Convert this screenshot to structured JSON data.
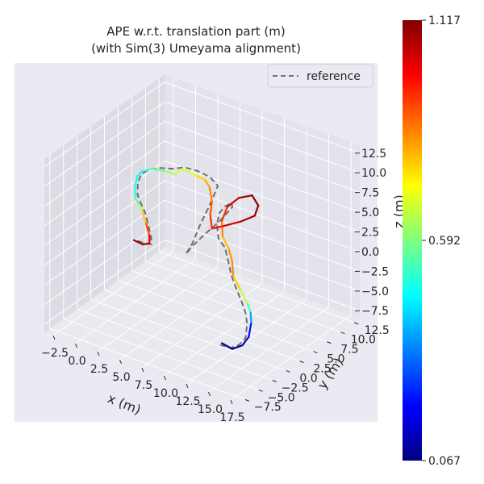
{
  "chart_data": {
    "type": "line",
    "projection": "3d",
    "title_line1": "APE w.r.t. translation part (m)",
    "title_line2": "(with Sim(3) Umeyama alignment)",
    "xlabel": "x (m)",
    "ylabel": "y (m)",
    "zlabel": "z (m)",
    "xlim": [
      -3.5,
      18.5
    ],
    "ylim": [
      -8.5,
      13.5
    ],
    "zlim": [
      -8.5,
      13.5
    ],
    "x_ticks": [
      "−2.5",
      "0.0",
      "2.5",
      "5.0",
      "7.5",
      "10.0",
      "12.5",
      "15.0",
      "17.5"
    ],
    "y_ticks": [
      "−7.5",
      "−5.0",
      "−2.5",
      "0.0",
      "2.5",
      "5.0",
      "7.5",
      "10.0",
      "12.5"
    ],
    "z_ticks": [
      "−7.5",
      "−5.0",
      "−2.5",
      "0.0",
      "2.5",
      "5.0",
      "7.5",
      "10.0",
      "12.5"
    ],
    "x_tick_values": [
      -2.5,
      0,
      2.5,
      5,
      7.5,
      10,
      12.5,
      15,
      17.5
    ],
    "y_tick_values": [
      -7.5,
      -5,
      -2.5,
      0,
      2.5,
      5,
      7.5,
      10,
      12.5
    ],
    "z_tick_values": [
      -7.5,
      -5,
      -2.5,
      0,
      2.5,
      5,
      7.5,
      10,
      12.5
    ],
    "grid": true,
    "legend": {
      "placement": "top-right",
      "entries": [
        {
          "name": "reference",
          "style": "dashed",
          "color": "#6e6e6e"
        }
      ]
    },
    "colorbar": {
      "colormap": "jet",
      "min": 0.067,
      "max": 1.117,
      "tick_labels": [
        "0.067",
        "0.592",
        "1.117"
      ],
      "tick_values": [
        0.067,
        0.592,
        1.117
      ]
    },
    "colors": {
      "background": "#eaeaf2",
      "pane_left": "#dcdce4",
      "pane_right": "#e3e3eb",
      "pane_floor": "#e9e9f0",
      "grid": "#ffffff",
      "reference": "#6e6e6e"
    },
    "trajectory": {
      "points": [
        [
          12.5,
          -2,
          -6.5,
          0.07
        ],
        [
          13.8,
          -2.2,
          -6.6,
          0.08
        ],
        [
          14.5,
          -1.5,
          -6.2,
          0.1
        ],
        [
          14.6,
          -0.5,
          -5.6,
          0.14
        ],
        [
          14.4,
          0.3,
          -4.2,
          0.28
        ],
        [
          14.0,
          0.8,
          -3.2,
          0.45
        ],
        [
          13.5,
          1.0,
          -2.4,
          0.6
        ],
        [
          12.5,
          1.3,
          -1.2,
          0.72
        ],
        [
          11.8,
          1.2,
          0.3,
          0.82
        ],
        [
          11.5,
          1.5,
          1.8,
          0.88
        ],
        [
          10.5,
          2.5,
          2.5,
          0.78
        ],
        [
          9.2,
          3.5,
          3.0,
          0.8
        ],
        [
          8.5,
          4.5,
          4.2,
          0.9
        ],
        [
          8.5,
          5.5,
          5.5,
          0.98
        ],
        [
          9.5,
          6.0,
          6.8,
          1.06
        ],
        [
          10.8,
          6.3,
          7.5,
          1.1
        ],
        [
          11.5,
          6.3,
          6.5,
          1.1
        ],
        [
          11.4,
          5.8,
          5.4,
          1.09
        ],
        [
          10.3,
          5.0,
          4.6,
          1.06
        ],
        [
          9.0,
          4.0,
          4.0,
          1.0
        ],
        [
          8.0,
          3.5,
          3.5,
          0.96
        ],
        [
          7.5,
          4.0,
          4.8,
          0.92
        ],
        [
          7.2,
          4.8,
          6.0,
          0.88
        ],
        [
          6.3,
          5.8,
          7.0,
          0.82
        ],
        [
          5.5,
          6.2,
          7.4,
          0.8
        ],
        [
          4.5,
          6.2,
          7.5,
          0.72
        ],
        [
          3.8,
          6.0,
          7.8,
          0.68
        ],
        [
          3.0,
          6.0,
          7.8,
          0.66
        ],
        [
          2.5,
          5.8,
          7.0,
          0.68
        ],
        [
          1.5,
          5.4,
          7.2,
          0.6
        ],
        [
          0.3,
          5.0,
          7.2,
          0.56
        ],
        [
          -0.5,
          4.5,
          6.8,
          0.48
        ],
        [
          -1.0,
          4.5,
          6.0,
          0.46
        ],
        [
          -1.0,
          4.0,
          5.0,
          0.48
        ],
        [
          -0.6,
          3.5,
          3.8,
          0.52
        ],
        [
          0.0,
          3.2,
          3.4,
          0.58
        ],
        [
          0.8,
          2.5,
          3.2,
          0.7
        ],
        [
          1.5,
          2.0,
          2.2,
          0.86
        ],
        [
          2.0,
          1.8,
          1.0,
          0.98
        ],
        [
          2.0,
          1.8,
          0.0,
          1.04
        ],
        [
          1.2,
          1.9,
          -0.5,
          1.08
        ],
        [
          0.0,
          2.2,
          -0.6,
          1.1
        ]
      ],
      "reference": [
        [
          12.3,
          -2.0,
          -6.8
        ],
        [
          13.5,
          -2.0,
          -6.7
        ],
        [
          14.2,
          -1.6,
          -6.2
        ],
        [
          14.3,
          -0.6,
          -5.8
        ],
        [
          14.0,
          0.2,
          -4.6
        ],
        [
          13.6,
          0.6,
          -3.6
        ],
        [
          13.0,
          0.9,
          -2.6
        ],
        [
          12.2,
          1.2,
          -1.4
        ],
        [
          11.5,
          1.3,
          0.2
        ],
        [
          11.0,
          1.6,
          1.6
        ],
        [
          10.0,
          2.6,
          2.4
        ],
        [
          8.8,
          3.4,
          2.6
        ],
        [
          8.0,
          4.4,
          3.6
        ],
        [
          7.8,
          5.2,
          4.6
        ],
        [
          8.2,
          5.6,
          5.4
        ],
        [
          8.8,
          5.8,
          6.0
        ],
        [
          9.0,
          5.6,
          5.6
        ],
        [
          8.2,
          4.6,
          4.0
        ],
        [
          7.0,
          3.6,
          2.2
        ],
        [
          6.0,
          3.0,
          0.6
        ],
        [
          5.5,
          2.8,
          -0.4
        ],
        [
          6.0,
          3.2,
          1.0
        ],
        [
          6.4,
          4.0,
          3.2
        ],
        [
          6.8,
          5.0,
          5.2
        ],
        [
          7.0,
          6.2,
          7.2
        ],
        [
          6.0,
          6.4,
          7.8
        ],
        [
          4.6,
          6.4,
          8.0
        ],
        [
          3.2,
          6.2,
          8.0
        ],
        [
          2.2,
          5.8,
          7.6
        ],
        [
          1.0,
          5.4,
          7.4
        ],
        [
          0.0,
          5.0,
          7.0
        ],
        [
          -0.6,
          4.6,
          6.4
        ],
        [
          -0.8,
          4.2,
          5.4
        ],
        [
          -0.5,
          3.7,
          4.2
        ],
        [
          0.2,
          3.2,
          3.6
        ],
        [
          1.0,
          2.6,
          3.2
        ],
        [
          1.7,
          2.1,
          2.0
        ],
        [
          2.2,
          1.8,
          0.8
        ],
        [
          2.2,
          1.8,
          0.0
        ],
        [
          1.4,
          1.9,
          -0.3
        ],
        [
          0.2,
          2.2,
          -0.5
        ]
      ]
    }
  }
}
